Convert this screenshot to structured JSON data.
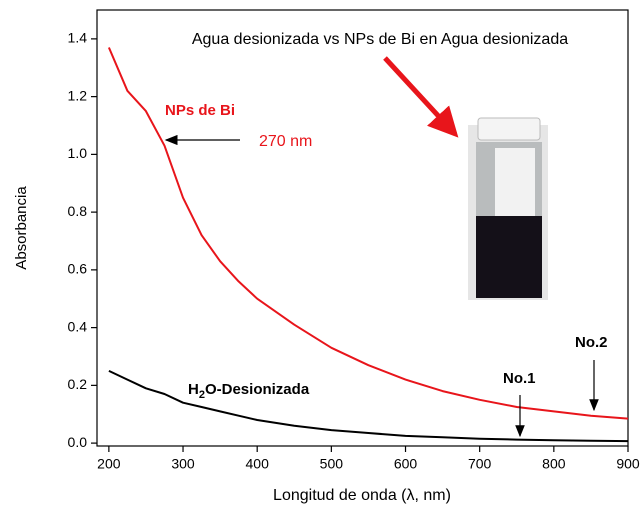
{
  "chart_data": {
    "type": "line",
    "x_label": "Longitud de onda (λ, nm)",
    "y_label": "Absorbancia",
    "x": [
      200,
      225,
      250,
      275,
      300,
      325,
      350,
      375,
      400,
      450,
      500,
      550,
      600,
      650,
      700,
      750,
      800,
      850,
      900
    ],
    "series": [
      {
        "name": "NPs de Bi",
        "color": "#e8151b",
        "values": [
          1.37,
          1.22,
          1.15,
          1.03,
          0.85,
          0.72,
          0.63,
          0.56,
          0.5,
          0.41,
          0.33,
          0.27,
          0.22,
          0.18,
          0.15,
          0.125,
          0.11,
          0.095,
          0.085
        ]
      },
      {
        "name": "H2O-Desionizada",
        "color": "#000000",
        "values": [
          0.25,
          0.22,
          0.19,
          0.17,
          0.14,
          0.125,
          0.11,
          0.095,
          0.08,
          0.06,
          0.045,
          0.035,
          0.025,
          0.02,
          0.015,
          0.012,
          0.01,
          0.008,
          0.007
        ]
      }
    ],
    "xlim": [
      184,
      900
    ],
    "ylim": [
      -0.01,
      1.5
    ],
    "xticks": [
      200,
      300,
      400,
      500,
      600,
      700,
      800,
      900
    ],
    "yticks": [
      {
        "value": 0,
        "label": "0.0"
      },
      {
        "value": 0.2,
        "label": "0.2"
      },
      {
        "value": 0.4,
        "label": "0.4"
      },
      {
        "value": 0.6,
        "label": "0.6"
      },
      {
        "value": 0.8,
        "label": "0.8"
      },
      {
        "value": 1,
        "label": "1.0"
      },
      {
        "value": 1.2,
        "label": "1.2"
      },
      {
        "value": 1.4,
        "label": "1.4"
      }
    ],
    "annotations": {
      "header": "Agua desionizada vs NPs de Bi en Agua desionizada",
      "peak": "270 nm",
      "water_label": [
        "H",
        "2",
        "O-Desionizada"
      ],
      "no1": "No.1",
      "no2": "No.2"
    }
  }
}
